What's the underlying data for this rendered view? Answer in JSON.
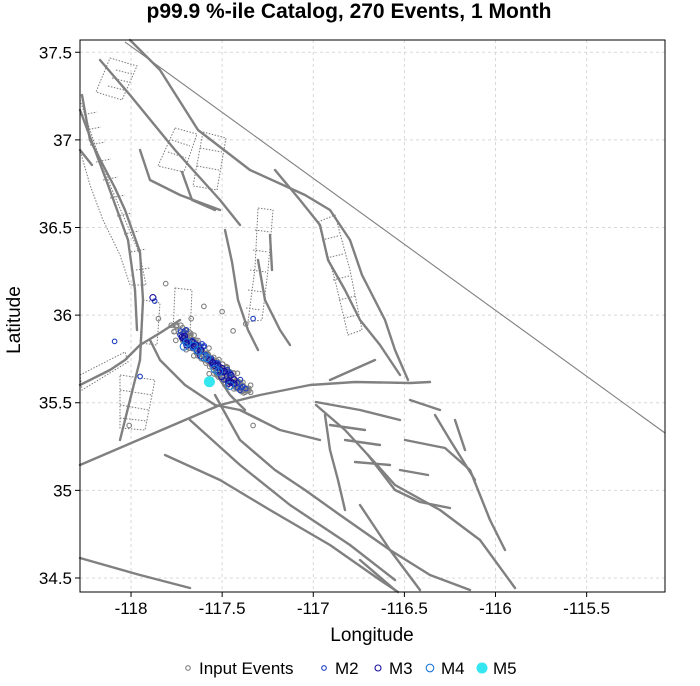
{
  "chart_data": {
    "type": "scatter",
    "title": "p99.9 %-ile Catalog, 270 Events, 1 Month",
    "xlabel": "Longitude",
    "ylabel": "Latitude",
    "xlim": [
      -118.28,
      -115.07
    ],
    "ylim": [
      34.42,
      37.57
    ],
    "x_ticks": [
      -118,
      -117.5,
      -117,
      -116.5,
      -116,
      -115.5
    ],
    "x_tick_labels": [
      "-118",
      "-117.5",
      "-117",
      "-116.5",
      "-116",
      "-115.5"
    ],
    "y_ticks": [
      34.5,
      35,
      35.5,
      36,
      36.5,
      37,
      37.5
    ],
    "y_tick_labels": [
      "34.5",
      "35",
      "35.5",
      "36",
      "36.5",
      "37",
      "37.5"
    ],
    "grid": true,
    "legend_position": "bottom",
    "legend": [
      {
        "label": "Input Events",
        "color": "#808080",
        "filled": false
      },
      {
        "label": "M2",
        "color": "#1f3fbf",
        "filled": false
      },
      {
        "label": "M3",
        "color": "#1a0f9e",
        "filled": false
      },
      {
        "label": "M4",
        "color": "#1e78d8",
        "filled": false
      },
      {
        "label": "M5",
        "color": "#33e6f0",
        "filled": true
      }
    ],
    "clusters": [
      {
        "name": "Input Events",
        "n": 185,
        "line": [
          [
            -117.76,
            35.93
          ],
          [
            -117.37,
            35.56
          ]
        ],
        "spread": 0.07,
        "extra": [
          [
            -117.85,
            35.98
          ],
          [
            -117.81,
            36.18
          ],
          [
            -117.67,
            35.98
          ],
          [
            -117.44,
            35.91
          ],
          [
            -117.37,
            35.95
          ],
          [
            -117.33,
            35.37
          ],
          [
            -118.01,
            35.37
          ],
          [
            -117.6,
            36.05
          ],
          [
            -117.5,
            36.02
          ]
        ]
      },
      {
        "name": "M2",
        "n": 45,
        "line": [
          [
            -117.75,
            35.92
          ],
          [
            -117.38,
            35.58
          ]
        ],
        "spread": 0.06,
        "extra": [
          [
            -118.09,
            35.85
          ],
          [
            -117.95,
            35.65
          ],
          [
            -117.87,
            36.08
          ],
          [
            -117.33,
            35.98
          ]
        ]
      },
      {
        "name": "M3",
        "n": 30,
        "line": [
          [
            -117.72,
            35.88
          ],
          [
            -117.42,
            35.6
          ]
        ],
        "spread": 0.04,
        "extra": [
          [
            -117.88,
            36.1
          ]
        ]
      },
      {
        "name": "M4",
        "n": 9,
        "line": [
          [
            -117.7,
            35.85
          ],
          [
            -117.45,
            35.6
          ]
        ],
        "spread": 0.04,
        "extra": []
      },
      {
        "name": "M5",
        "n": 1,
        "line": [
          [
            -117.57,
            35.62
          ],
          [
            -117.57,
            35.62
          ]
        ],
        "spread": 0.0,
        "extra": []
      }
    ]
  }
}
